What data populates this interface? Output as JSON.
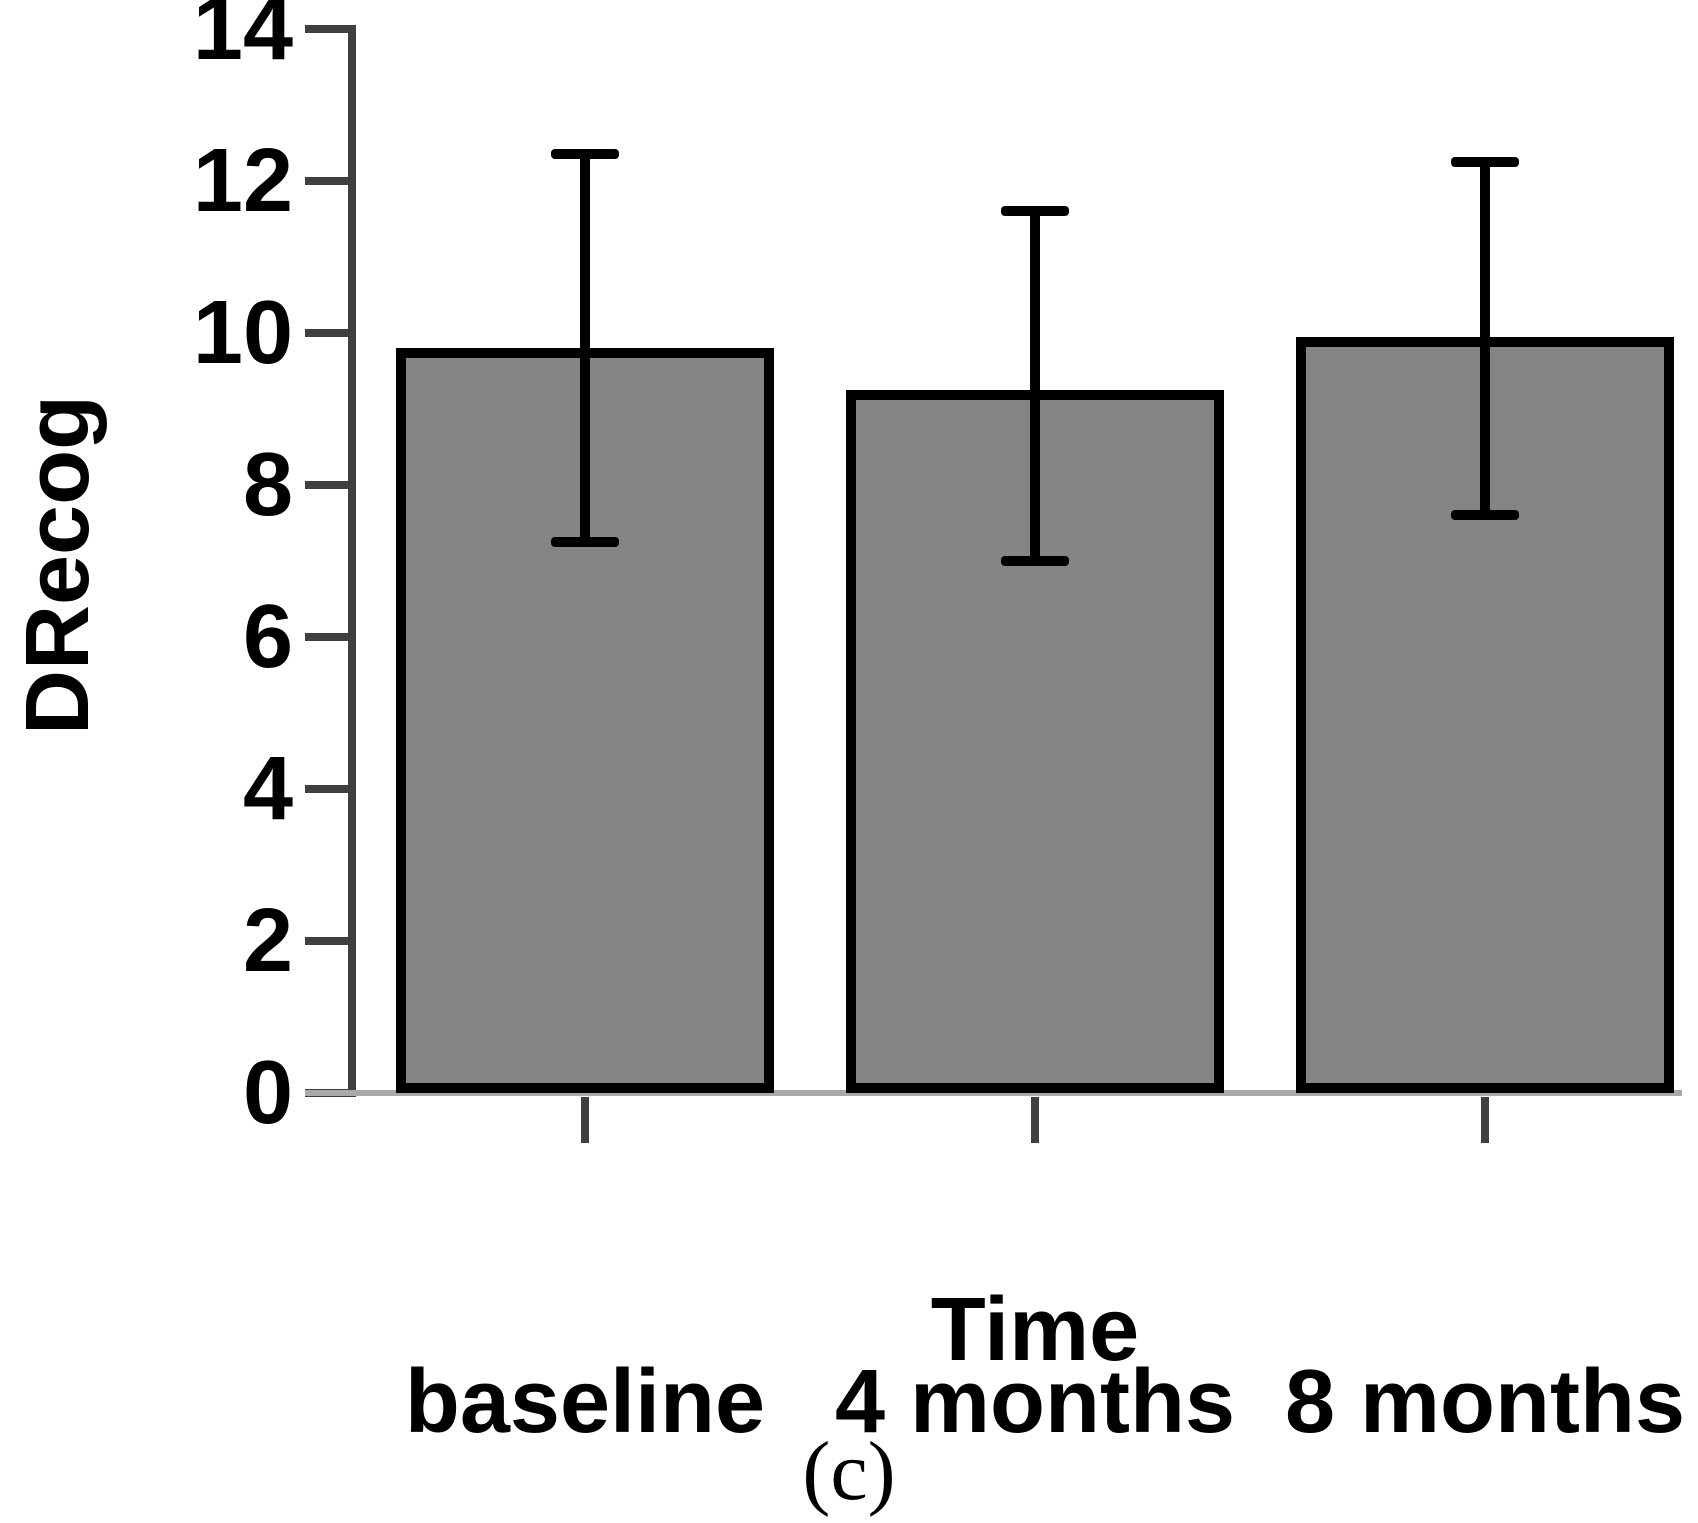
{
  "figure": {
    "caption": "(c)"
  },
  "chart_data": {
    "type": "bar",
    "title": "",
    "categories": [
      "baseline",
      "4 months",
      "8 months"
    ],
    "values": [
      9.8,
      9.25,
      9.95
    ],
    "error_upper": [
      12.35,
      11.6,
      12.25
    ],
    "error_lower": [
      7.25,
      7.0,
      7.6
    ],
    "xlabel": "Time",
    "ylabel": "DRecog",
    "yticks": [
      0,
      2,
      4,
      6,
      8,
      10,
      12,
      14
    ],
    "ylim": [
      0,
      14
    ],
    "grid": false,
    "legend": "none",
    "bar_fill": "#858585",
    "bar_border": "#000000",
    "error_bar_color": "#000000",
    "axis_color": "#3f3f3f",
    "baseline_color": "#a9a9a9",
    "text_color": "#000000"
  }
}
